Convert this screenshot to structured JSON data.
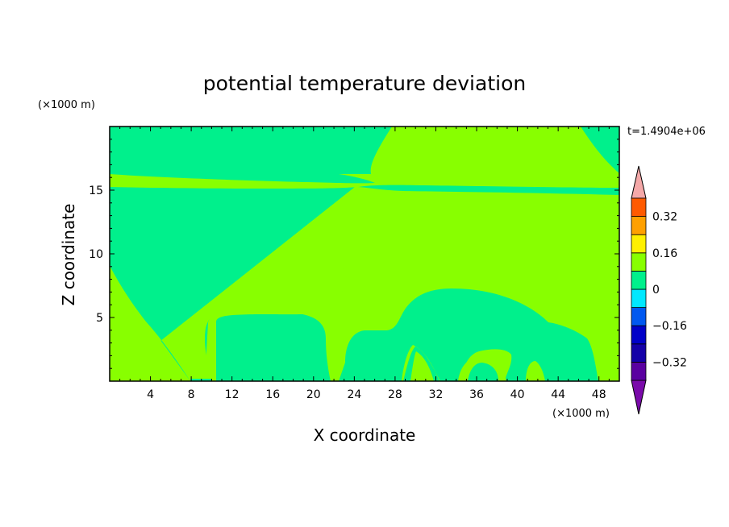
{
  "chart_data": {
    "type": "contour",
    "title": "potential temperature deviation",
    "xlabel": "X coordinate",
    "ylabel": "Z coordinate",
    "x_unit": "(×1000 m)",
    "z_unit": "(×1000 m)",
    "time_label": "t=1.4904e+06",
    "xlim": [
      0,
      50
    ],
    "ylim": [
      0,
      20
    ],
    "x_ticks": [
      4,
      8,
      12,
      16,
      20,
      24,
      28,
      32,
      36,
      40,
      44,
      48
    ],
    "y_ticks": [
      5,
      10,
      15
    ],
    "colorbar": {
      "levels": [
        -0.4,
        -0.32,
        -0.24,
        -0.16,
        -0.08,
        0,
        0.08,
        0.16,
        0.24,
        0.32,
        0.4
      ],
      "labels": [
        "0.32",
        "0.16",
        "0",
        "−0.16",
        "−0.32"
      ],
      "label_values": [
        0.32,
        0.16,
        0,
        -0.16,
        -0.32
      ],
      "colors": [
        "#5a00a0",
        "#1400a8",
        "#0000c8",
        "#0058f0",
        "#00e8ff",
        "#00f08c",
        "#88ff00",
        "#fff000",
        "#ffa000",
        "#ff5a00",
        "#ff1e1e"
      ],
      "under_color": "#7a0aaa",
      "over_color": "#f4a8a8"
    },
    "field_colors": {
      "negative_small": "#00f08c",
      "positive_small": "#88ff00"
    }
  }
}
